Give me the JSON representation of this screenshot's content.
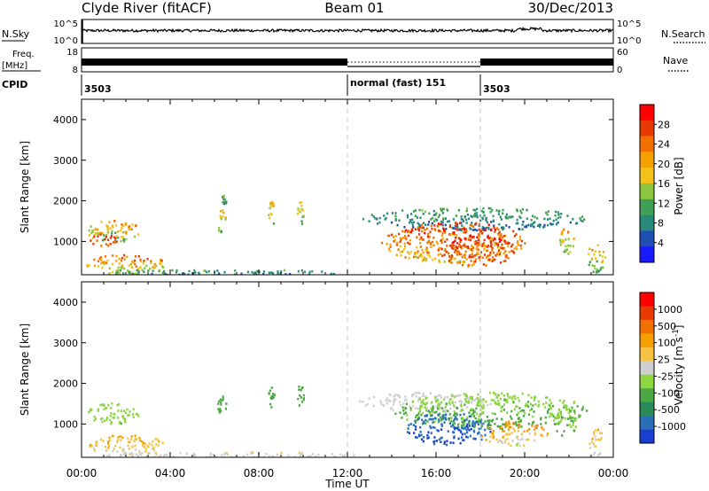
{
  "header": {
    "station": "Clyde River (fitACF)",
    "beam": "Beam 01",
    "date": "30/Dec/2013"
  },
  "colors": {
    "power_scale": [
      "#1a1aff",
      "#1f4fb3",
      "#2a8a7a",
      "#3fa055",
      "#8cc63e",
      "#f2c21b",
      "#f5a200",
      "#f07000",
      "#e83a00",
      "#ff0000"
    ],
    "velocity_scale": [
      "#1a3fd0",
      "#2a6fb3",
      "#2a8a5a",
      "#4ca845",
      "#8cd640",
      "#cfcfcf",
      "#f5c242",
      "#f5a000",
      "#f07000",
      "#e83a00",
      "#ff0000"
    ]
  },
  "panels": {
    "nsky": {
      "label": "N.Sky",
      "ticks": [
        "10^5",
        "10^0"
      ]
    },
    "nsearch": {
      "label": "N.Search",
      "ticks": [
        "10^5",
        "10^0"
      ]
    },
    "freq": {
      "label_line1": "Freq.",
      "label_line2": "[MHz]",
      "ticks": [
        "18",
        "8"
      ]
    },
    "nave": {
      "label": "Nave",
      "ticks": [
        "60",
        "0"
      ]
    },
    "cpid": {
      "label": "CPID",
      "segments": [
        {
          "text": "3503",
          "start_hr": 0
        },
        {
          "text": "normal (fast) 151",
          "start_hr": 12
        },
        {
          "text": "3503",
          "start_hr": 18
        }
      ]
    }
  },
  "chart_data": [
    {
      "type": "heatmap",
      "name": "power",
      "ylabel": "Slant Range [km]",
      "ylim": [
        180,
        4500
      ],
      "yticks": [
        1000,
        2000,
        3000,
        4000
      ],
      "xlim": [
        0,
        24
      ],
      "colorbar": {
        "label": "Power [dB]",
        "ticks": [
          "28",
          "24",
          "20",
          "16",
          "12",
          "8",
          "4"
        ],
        "range": [
          0,
          32
        ]
      },
      "blobs": [
        {
          "t0": 0.2,
          "t1": 2.6,
          "r0": 1000,
          "r1": 1550,
          "v0": 4,
          "v1": 28
        },
        {
          "t0": 0.3,
          "t1": 1.6,
          "r0": 900,
          "r1": 1200,
          "v0": 22,
          "v1": 30
        },
        {
          "t0": 0.2,
          "t1": 3.8,
          "r0": 200,
          "r1": 700,
          "v0": 6,
          "v1": 30
        },
        {
          "t0": 0.2,
          "t1": 12.5,
          "r0": 200,
          "r1": 330,
          "v0": 2,
          "v1": 14
        },
        {
          "t0": 6.1,
          "t1": 6.5,
          "r0": 1200,
          "r1": 1800,
          "v0": 8,
          "v1": 22
        },
        {
          "t0": 6.3,
          "t1": 6.5,
          "r0": 1900,
          "r1": 2200,
          "v0": 4,
          "v1": 16
        },
        {
          "t0": 8.4,
          "t1": 8.7,
          "r0": 1350,
          "r1": 2000,
          "v0": 8,
          "v1": 22
        },
        {
          "t0": 9.7,
          "t1": 10.0,
          "r0": 1350,
          "r1": 2000,
          "v0": 6,
          "v1": 20
        },
        {
          "t0": 12.5,
          "t1": 22.8,
          "r0": 1300,
          "r1": 1850,
          "v0": 2,
          "v1": 14
        },
        {
          "t0": 13.5,
          "t1": 20.0,
          "r0": 500,
          "r1": 1500,
          "v0": 12,
          "v1": 32
        },
        {
          "t0": 16.0,
          "t1": 19.5,
          "r0": 400,
          "r1": 1200,
          "v0": 20,
          "v1": 32
        },
        {
          "t0": 21.5,
          "t1": 22.2,
          "r0": 700,
          "r1": 1400,
          "v0": 8,
          "v1": 26
        },
        {
          "t0": 22.8,
          "t1": 23.6,
          "r0": 250,
          "r1": 1000,
          "v0": 4,
          "v1": 28
        }
      ]
    },
    {
      "type": "heatmap",
      "name": "velocity",
      "ylabel": "Slant Range [km]",
      "xlabel": "Time UT",
      "ylim": [
        180,
        4500
      ],
      "yticks": [
        1000,
        2000,
        3000,
        4000
      ],
      "xlim": [
        0,
        24
      ],
      "xticks": [
        "00:00",
        "04:00",
        "08:00",
        "12:00",
        "16:00",
        "20:00",
        "00:00"
      ],
      "colorbar": {
        "label": "Velocity [m s^-1]",
        "ticks": [
          "1000",
          "500",
          "100",
          "25",
          "-25",
          "-100",
          "-500",
          "-1000"
        ],
        "range": [
          -1250,
          1250
        ]
      },
      "blobs": [
        {
          "t0": 0.2,
          "t1": 2.6,
          "r0": 1000,
          "r1": 1550,
          "v0": -400,
          "v1": -100
        },
        {
          "t0": 0.2,
          "t1": 3.8,
          "r0": 250,
          "r1": 750,
          "v0": -100,
          "v1": 500
        },
        {
          "t0": 0.2,
          "t1": 12.5,
          "r0": 200,
          "r1": 330,
          "v0": -50,
          "v1": 150
        },
        {
          "t0": 6.1,
          "t1": 6.5,
          "r0": 1200,
          "r1": 1800,
          "v0": -600,
          "v1": -300
        },
        {
          "t0": 8.4,
          "t1": 8.7,
          "r0": 1350,
          "r1": 2000,
          "v0": -600,
          "v1": -300
        },
        {
          "t0": 9.7,
          "t1": 10.0,
          "r0": 1350,
          "r1": 2000,
          "v0": -700,
          "v1": -300
        },
        {
          "t0": 12.5,
          "t1": 18.5,
          "r0": 1300,
          "r1": 1800,
          "v0": -30,
          "v1": 20
        },
        {
          "t0": 14.0,
          "t1": 22.8,
          "r0": 900,
          "r1": 1800,
          "v0": -600,
          "v1": -100
        },
        {
          "t0": 14.5,
          "t1": 18.5,
          "r0": 500,
          "r1": 1300,
          "v0": -1200,
          "v1": -800
        },
        {
          "t0": 18.0,
          "t1": 21.0,
          "r0": 450,
          "r1": 1100,
          "v0": -300,
          "v1": 800
        },
        {
          "t0": 21.3,
          "t1": 22.3,
          "r0": 700,
          "r1": 1500,
          "v0": -500,
          "v1": -100
        },
        {
          "t0": 22.8,
          "t1": 23.6,
          "r0": 250,
          "r1": 900,
          "v0": -300,
          "v1": 500
        }
      ]
    }
  ]
}
